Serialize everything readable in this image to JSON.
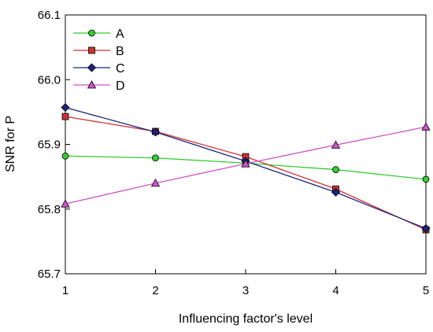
{
  "chart_data": {
    "type": "line",
    "title": "",
    "xlabel": "Influencing factor's level",
    "ylabel": "SNR for P",
    "x": [
      1,
      2,
      3,
      4,
      5
    ],
    "xticks": [
      "1",
      "2",
      "3",
      "4",
      "5"
    ],
    "yticks": [
      "65.7",
      "65.8",
      "65.9",
      "66.0",
      "66.1"
    ],
    "xlim": [
      1,
      5
    ],
    "ylim": [
      65.7,
      66.1
    ],
    "grid": false,
    "legend": "top-left",
    "series": [
      {
        "name": "A",
        "values": [
          65.882,
          65.879,
          65.871,
          65.861,
          65.846
        ],
        "color": "#33cc33",
        "marker": "circle"
      },
      {
        "name": "B",
        "values": [
          65.943,
          65.92,
          65.881,
          65.831,
          65.768
        ],
        "color": "#cc3333",
        "marker": "square"
      },
      {
        "name": "C",
        "values": [
          65.957,
          65.919,
          65.874,
          65.826,
          65.77
        ],
        "color": "#1a237e",
        "marker": "diamond"
      },
      {
        "name": "D",
        "values": [
          65.808,
          65.84,
          65.87,
          65.899,
          65.927
        ],
        "color": "#cc55cc",
        "marker": "triangle"
      }
    ]
  }
}
